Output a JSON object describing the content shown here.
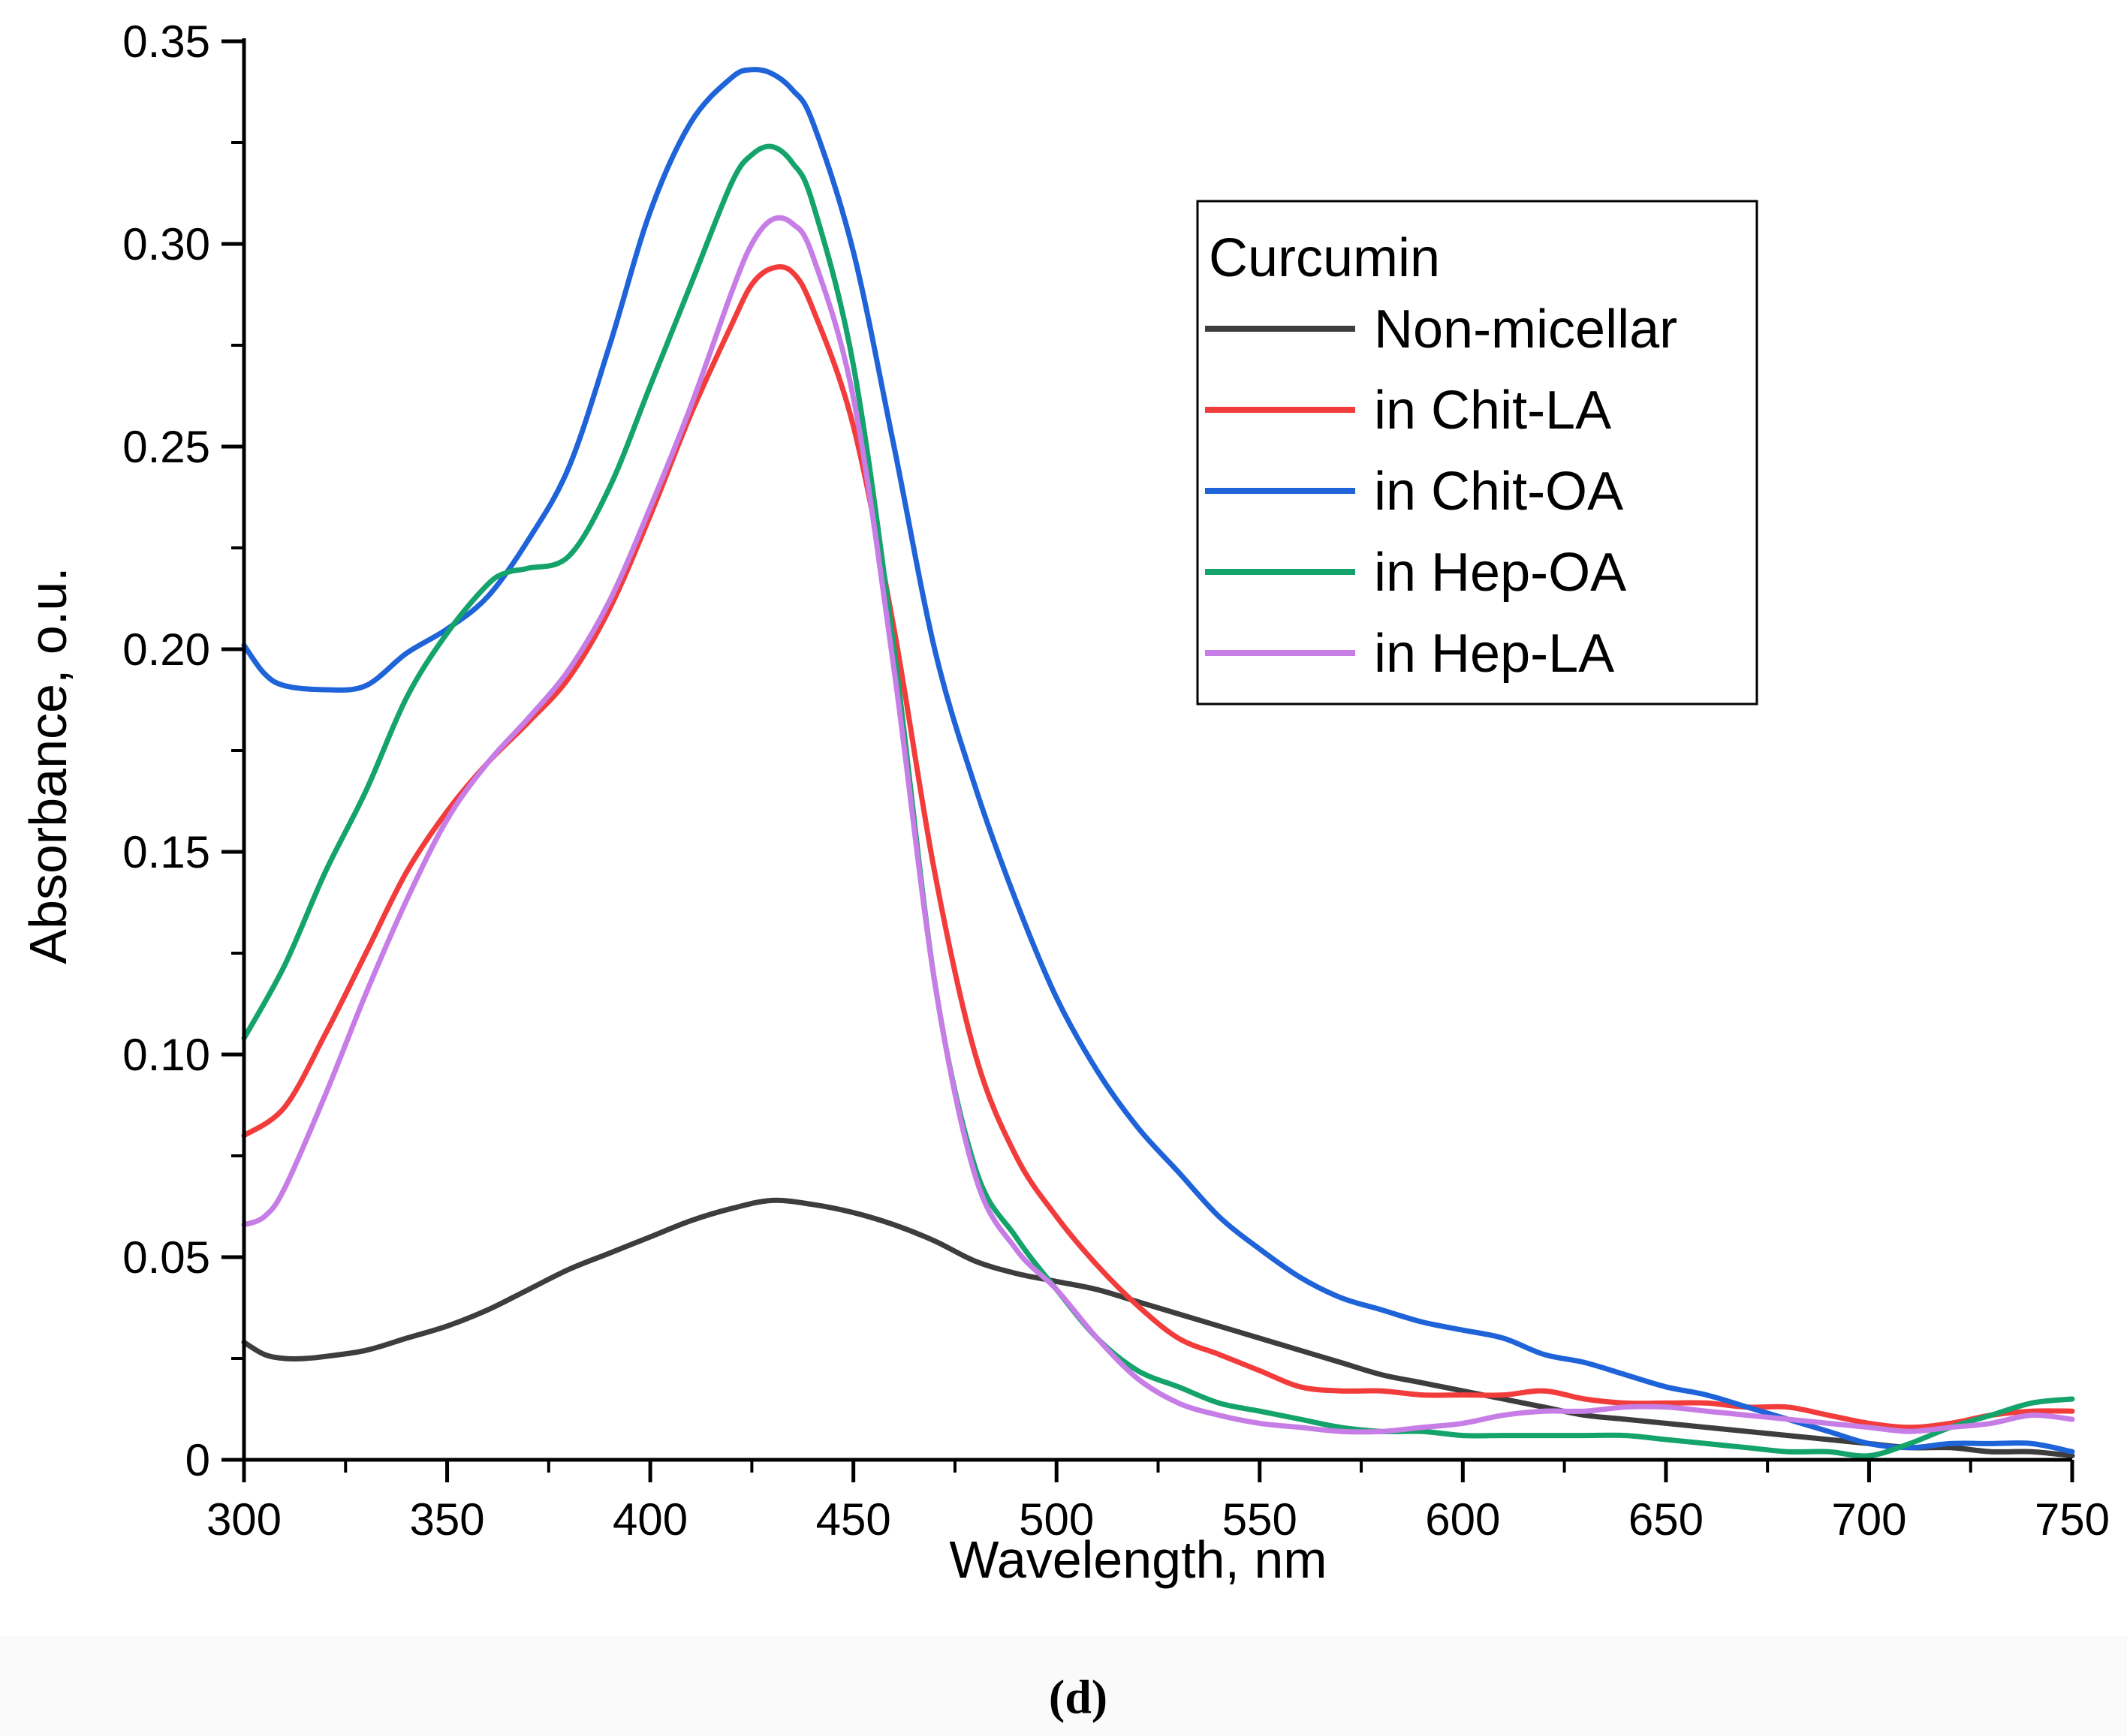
{
  "chart_data": {
    "type": "line",
    "title": "",
    "caption": "(d)",
    "xlabel": "Wavelength, nm",
    "ylabel": "Absorbance, o.u.",
    "xlim": [
      300,
      750
    ],
    "ylim": [
      0,
      0.35
    ],
    "xticks": [
      300,
      350,
      400,
      450,
      500,
      550,
      600,
      650,
      700,
      750
    ],
    "yticks": [
      0,
      0.05,
      0.1,
      0.15,
      0.2,
      0.25,
      0.3,
      0.35
    ],
    "xtick_labels": [
      "300",
      "350",
      "400",
      "450",
      "500",
      "550",
      "600",
      "650",
      "700",
      "750"
    ],
    "ytick_labels": [
      "0",
      "0.05",
      "0.10",
      "0.15",
      "0.20",
      "0.25",
      "0.30",
      "0.35"
    ],
    "grid": false,
    "legend": {
      "title": "Curcumin",
      "placement": "top-right"
    },
    "series": [
      {
        "name": "Non-micellar",
        "color": "#3d3d3d",
        "x": [
          300,
          305,
          310,
          315,
          320,
          330,
          340,
          350,
          360,
          370,
          380,
          390,
          400,
          410,
          420,
          430,
          440,
          450,
          460,
          470,
          480,
          490,
          500,
          510,
          520,
          530,
          540,
          550,
          560,
          570,
          580,
          590,
          600,
          610,
          620,
          630,
          640,
          650,
          660,
          670,
          680,
          690,
          700,
          710,
          720,
          730,
          740,
          750
        ],
        "values": [
          0.029,
          0.026,
          0.025,
          0.025,
          0.0255,
          0.027,
          0.03,
          0.033,
          0.037,
          0.042,
          0.047,
          0.051,
          0.055,
          0.059,
          0.062,
          0.064,
          0.063,
          0.061,
          0.058,
          0.054,
          0.049,
          0.046,
          0.044,
          0.042,
          0.039,
          0.036,
          0.033,
          0.03,
          0.027,
          0.024,
          0.021,
          0.019,
          0.017,
          0.015,
          0.013,
          0.011,
          0.01,
          0.009,
          0.008,
          0.007,
          0.006,
          0.005,
          0.004,
          0.003,
          0.003,
          0.002,
          0.002,
          0.001
        ]
      },
      {
        "name": "in Chit-LA",
        "color": "#f23c3c",
        "x": [
          300,
          310,
          320,
          330,
          340,
          350,
          360,
          370,
          380,
          390,
          400,
          410,
          420,
          425,
          430,
          435,
          440,
          450,
          460,
          470,
          480,
          490,
          500,
          510,
          520,
          530,
          540,
          550,
          560,
          570,
          580,
          590,
          600,
          610,
          620,
          630,
          640,
          650,
          660,
          670,
          680,
          690,
          700,
          710,
          720,
          730,
          740,
          750
        ],
        "values": [
          0.08,
          0.087,
          0.105,
          0.125,
          0.145,
          0.16,
          0.172,
          0.182,
          0.193,
          0.21,
          0.233,
          0.258,
          0.28,
          0.29,
          0.294,
          0.293,
          0.284,
          0.255,
          0.205,
          0.145,
          0.1,
          0.075,
          0.06,
          0.048,
          0.038,
          0.03,
          0.026,
          0.022,
          0.018,
          0.017,
          0.017,
          0.016,
          0.016,
          0.016,
          0.017,
          0.015,
          0.014,
          0.014,
          0.014,
          0.013,
          0.013,
          0.011,
          0.009,
          0.008,
          0.009,
          0.011,
          0.012,
          0.012
        ]
      },
      {
        "name": "in Chit-OA",
        "color": "#1f63d8",
        "x": [
          300,
          305,
          310,
          320,
          330,
          340,
          350,
          360,
          370,
          380,
          390,
          400,
          410,
          420,
          425,
          430,
          435,
          440,
          450,
          460,
          470,
          480,
          490,
          500,
          510,
          520,
          530,
          540,
          550,
          560,
          570,
          580,
          590,
          600,
          610,
          620,
          630,
          640,
          650,
          660,
          670,
          680,
          690,
          700,
          710,
          720,
          730,
          740,
          750
        ],
        "values": [
          0.201,
          0.194,
          0.191,
          0.19,
          0.191,
          0.199,
          0.205,
          0.213,
          0.227,
          0.245,
          0.275,
          0.308,
          0.33,
          0.341,
          0.343,
          0.342,
          0.338,
          0.33,
          0.298,
          0.25,
          0.2,
          0.166,
          0.138,
          0.114,
          0.096,
          0.082,
          0.071,
          0.06,
          0.052,
          0.045,
          0.04,
          0.037,
          0.034,
          0.032,
          0.03,
          0.026,
          0.024,
          0.021,
          0.018,
          0.016,
          0.013,
          0.01,
          0.007,
          0.004,
          0.003,
          0.004,
          0.004,
          0.004,
          0.002
        ]
      },
      {
        "name": "in Hep-OA",
        "color": "#14a36a",
        "x": [
          300,
          310,
          320,
          330,
          340,
          350,
          360,
          365,
          370,
          380,
          390,
          400,
          410,
          420,
          425,
          430,
          435,
          440,
          450,
          460,
          470,
          480,
          490,
          500,
          510,
          520,
          530,
          540,
          550,
          560,
          570,
          580,
          590,
          600,
          610,
          620,
          630,
          640,
          650,
          660,
          670,
          680,
          690,
          700,
          710,
          720,
          730,
          740,
          750
        ],
        "values": [
          0.104,
          0.122,
          0.145,
          0.165,
          0.188,
          0.204,
          0.216,
          0.219,
          0.22,
          0.223,
          0.24,
          0.265,
          0.29,
          0.315,
          0.322,
          0.324,
          0.32,
          0.31,
          0.27,
          0.2,
          0.118,
          0.072,
          0.055,
          0.042,
          0.03,
          0.022,
          0.018,
          0.014,
          0.012,
          0.01,
          0.008,
          0.007,
          0.007,
          0.006,
          0.006,
          0.006,
          0.006,
          0.006,
          0.005,
          0.004,
          0.003,
          0.002,
          0.002,
          0.001,
          0.004,
          0.008,
          0.011,
          0.014,
          0.015
        ]
      },
      {
        "name": "in Hep-LA",
        "color": "#c77de6",
        "x": [
          300,
          305,
          310,
          320,
          330,
          340,
          350,
          360,
          370,
          380,
          390,
          400,
          410,
          420,
          425,
          430,
          435,
          440,
          450,
          460,
          470,
          480,
          490,
          500,
          510,
          520,
          530,
          540,
          550,
          560,
          570,
          580,
          590,
          600,
          610,
          620,
          630,
          640,
          650,
          660,
          670,
          680,
          690,
          700,
          710,
          720,
          730,
          740,
          750
        ],
        "values": [
          0.058,
          0.06,
          0.067,
          0.09,
          0.115,
          0.138,
          0.158,
          0.172,
          0.183,
          0.195,
          0.212,
          0.235,
          0.26,
          0.288,
          0.3,
          0.306,
          0.305,
          0.297,
          0.262,
          0.195,
          0.118,
          0.07,
          0.052,
          0.042,
          0.03,
          0.02,
          0.014,
          0.011,
          0.009,
          0.008,
          0.007,
          0.007,
          0.008,
          0.009,
          0.011,
          0.012,
          0.012,
          0.013,
          0.013,
          0.012,
          0.011,
          0.01,
          0.009,
          0.008,
          0.007,
          0.008,
          0.009,
          0.011,
          0.01
        ]
      }
    ]
  }
}
